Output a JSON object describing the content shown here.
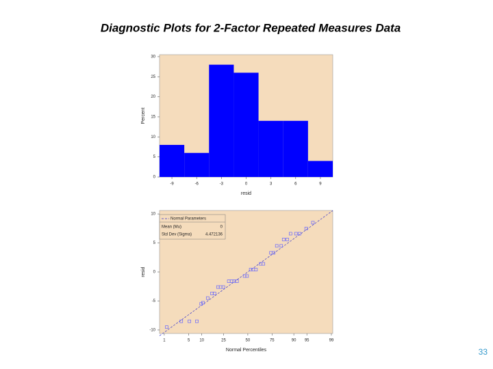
{
  "title": "Diagnostic Plots for 2-Factor Repeated Measures Data",
  "page_number": "33",
  "chart_data": [
    {
      "type": "histogram",
      "xlabel": "resid",
      "ylabel": "Percent",
      "bins": [
        -10.5,
        -7.5,
        -4.5,
        -1.5,
        1.5,
        4.5,
        7.5,
        10.5
      ],
      "values": [
        8,
        6,
        28,
        26,
        14,
        14,
        4
      ],
      "color": "#0000ff",
      "background": "#f5dcbc",
      "xlim": [
        -10.5,
        10.5
      ],
      "xticks": [
        -9,
        -6,
        -3,
        0,
        3,
        6,
        9
      ],
      "ylim": [
        0,
        30.5
      ],
      "yticks": [
        0,
        5,
        10,
        15,
        20,
        25,
        30
      ]
    },
    {
      "type": "probability",
      "xlabel": "Normal Percentiles",
      "ylabel": "resid",
      "x_scale": "probit",
      "background": "#f5dcbc",
      "color": "#6666ff",
      "x": [
        1.2,
        3.2,
        5.2,
        7.8,
        9.7,
        10.6,
        13.2,
        15.9,
        17.7,
        20.3,
        22.4,
        24.8,
        29.8,
        32.6,
        35.2,
        38.2,
        46.4,
        49.2,
        53.2,
        56,
        59,
        64,
        66.8,
        74,
        76.4,
        79,
        82.4,
        84.1,
        86.4,
        88.3,
        91,
        92.5,
        94.8,
        96.5
      ],
      "values": [
        -9.5,
        -8.5,
        -8.5,
        -8.5,
        -5.5,
        -5.3,
        -4.5,
        -3.7,
        -3.7,
        -2.6,
        -2.6,
        -2.6,
        -1.6,
        -1.6,
        -1.6,
        -1.6,
        -0.7,
        -0.7,
        0.4,
        0.4,
        0.4,
        1.4,
        1.4,
        3.3,
        3.3,
        4.5,
        4.5,
        5.6,
        5.6,
        6.6,
        6.6,
        6.6,
        7.5,
        8.5
      ],
      "xlim": [
        0.7,
        99.1
      ],
      "xticks": [
        1,
        5,
        10,
        25,
        50,
        75,
        90,
        95,
        99
      ],
      "ylim": [
        -10.6,
        10.6
      ],
      "yticks": [
        -10,
        -5,
        0,
        5,
        10
      ],
      "reference": {
        "name": "Normal Parameters",
        "mean_label": "Mean (Mu)",
        "mean": 0,
        "std_label": "Std Dev (Sigma)",
        "std": 4.472136,
        "color": "#3333cc"
      }
    }
  ]
}
